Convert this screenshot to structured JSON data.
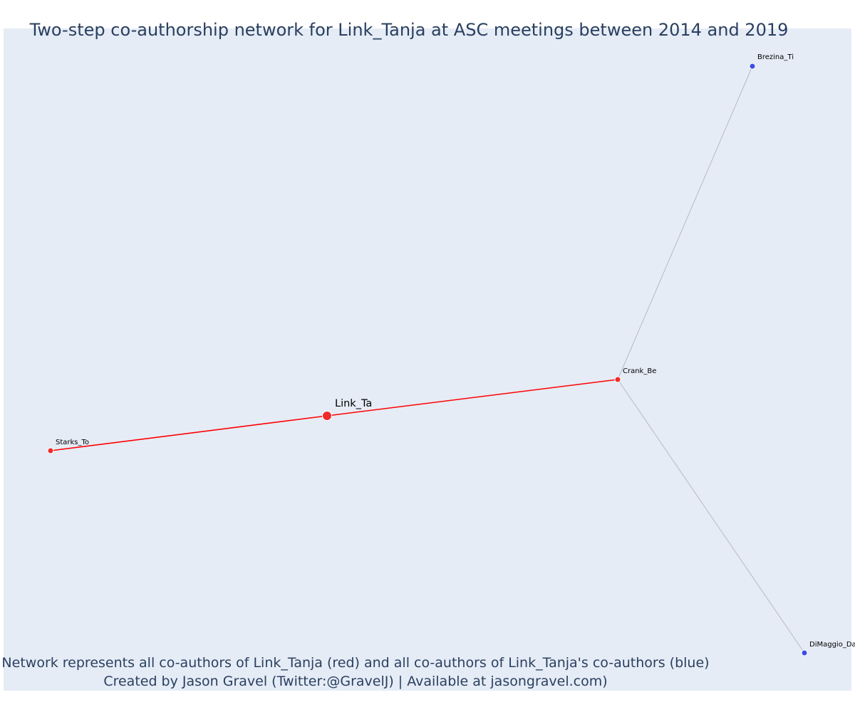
{
  "title": "Two-step co-authorship network for Link_Tanja at ASC meetings between 2014 and 2019",
  "caption": {
    "line1": "Network represents all co-authors of Link_Tanja (red) and all co-authors of Link_Tanja's co-authors (blue)",
    "line2": "Created by Jason Gravel (Twitter:@GravelJ) | Available at jasongravel.com)"
  },
  "colors": {
    "plot_background": "#e5ecf6",
    "coauthor": "#ef2b2b",
    "second_degree": "#3c4ce6",
    "direct_edge": "#ff0000",
    "indirect_edge": "#b7b9c9"
  },
  "chart_data": {
    "type": "network",
    "nodes": [
      {
        "id": "Link_Ta",
        "label": "Link_Ta",
        "group": "ego"
      },
      {
        "id": "Starks_To",
        "label": "Starks_To",
        "group": "coauthor"
      },
      {
        "id": "Crank_Be",
        "label": "Crank_Be",
        "group": "coauthor"
      },
      {
        "id": "Brezina_Ti",
        "label": "Brezina_Ti",
        "group": "second_degree"
      },
      {
        "id": "DiMaggio_Da",
        "label": "DiMaggio_Da",
        "group": "second_degree"
      }
    ],
    "edges": [
      {
        "source": "Starks_To",
        "target": "Link_Ta",
        "kind": "direct"
      },
      {
        "source": "Link_Ta",
        "target": "Crank_Be",
        "kind": "direct"
      },
      {
        "source": "Crank_Be",
        "target": "Brezina_Ti",
        "kind": "indirect"
      },
      {
        "source": "Crank_Be",
        "target": "DiMaggio_Da",
        "kind": "indirect"
      }
    ]
  }
}
